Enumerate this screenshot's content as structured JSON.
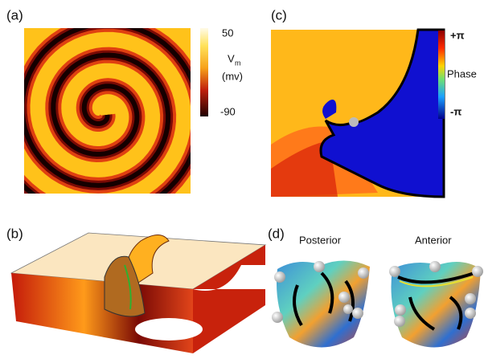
{
  "panels": [
    {
      "label": "(a)",
      "colorbar": {
        "max": "50",
        "quantity": "V",
        "quantity_sub": "m",
        "unit": "(mv)",
        "min": "-90"
      }
    },
    {
      "label": "(b)"
    },
    {
      "label": "(c)",
      "colorbar": {
        "max": "+π",
        "quantity": "Phase",
        "min": "-π"
      }
    },
    {
      "label": "(d)",
      "views": [
        "Posterior",
        "Anterior"
      ]
    }
  ]
}
